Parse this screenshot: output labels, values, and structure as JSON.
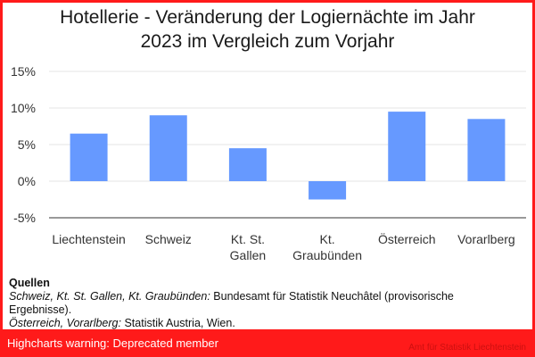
{
  "chart_data": {
    "type": "bar",
    "title_lines": [
      "Hotellerie - Veränderung der Logiernächte im Jahr",
      "2023 im Vergleich zum Vorjahr"
    ],
    "categories": [
      [
        "Liechtenstein"
      ],
      [
        "Schweiz"
      ],
      [
        "Kt. St.",
        "Gallen"
      ],
      [
        "Kt.",
        "Graubünden"
      ],
      [
        "Österreich"
      ],
      [
        "Vorarlberg"
      ]
    ],
    "values": [
      6.5,
      9.0,
      4.5,
      -2.5,
      9.5,
      8.5
    ],
    "ylim": [
      -5,
      15
    ],
    "yticks": [
      -5,
      0,
      5,
      10,
      15
    ],
    "ytick_labels": [
      "-5%",
      "0%",
      "5%",
      "10%",
      "15%"
    ],
    "bar_color": "#6699ff",
    "grid": true
  },
  "sources": {
    "heading": "Quellen",
    "lines": [
      {
        "label": "Schweiz, Kt. St. Gallen, Kt. Graubünden:",
        "text": " Bundesamt für Statistik Neuchâtel (provisorische Ergebnisse)."
      },
      {
        "label": "Österreich, Vorarlberg:",
        "text": " Statistik Austria, Wien."
      }
    ]
  },
  "warning": "Highcharts warning: Deprecated member",
  "credit": "Amt für Statistik Liechtenstein"
}
